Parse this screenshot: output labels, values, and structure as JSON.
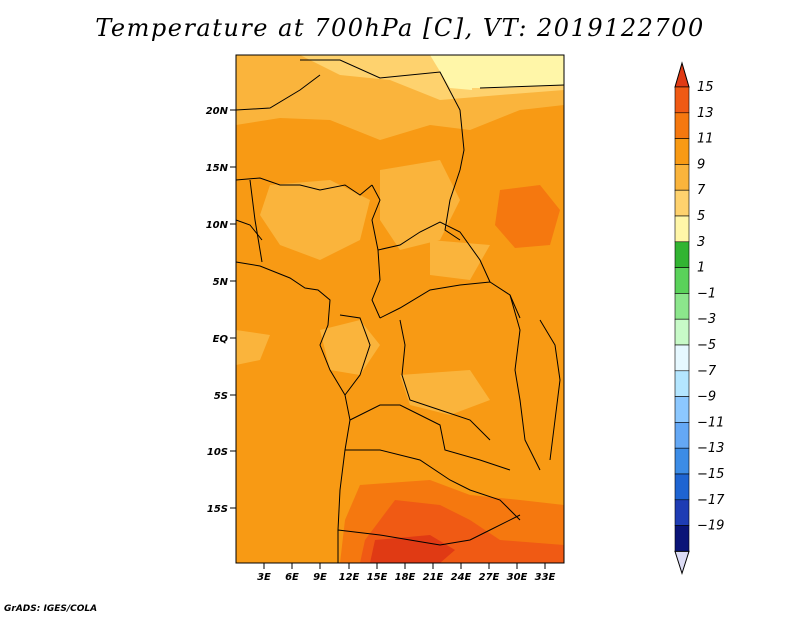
{
  "title": "Temperature at 700hPa [C], VT: 2019122700",
  "credit": "GrADS: IGES/COLA",
  "map": {
    "lat_ticks": [
      "20N",
      "15N",
      "10N",
      "5N",
      "EQ",
      "5S",
      "10S",
      "15S"
    ],
    "lon_ticks": [
      "3E",
      "6E",
      "9E",
      "12E",
      "15E",
      "18E",
      "21E",
      "24E",
      "27E",
      "30E",
      "33E"
    ]
  },
  "colorbar": {
    "labels": [
      "15",
      "13",
      "11",
      "9",
      "7",
      "5",
      "3",
      "1",
      "−1",
      "−3",
      "−5",
      "−7",
      "−9",
      "−11",
      "−13",
      "−15",
      "−17",
      "−19"
    ],
    "colors": [
      "#e03a14",
      "#f05a14",
      "#f5780f",
      "#f89a14",
      "#fab43c",
      "#fed26e",
      "#fff6a8",
      "#32b432",
      "#5ad25a",
      "#8ce68c",
      "#c8fac8",
      "#e6f8ff",
      "#b4e6ff",
      "#8cc8ff",
      "#64a8f5",
      "#3c8ce6",
      "#1e64d2",
      "#1e3cb4",
      "#0a1478",
      "#dcdcf5"
    ]
  }
}
